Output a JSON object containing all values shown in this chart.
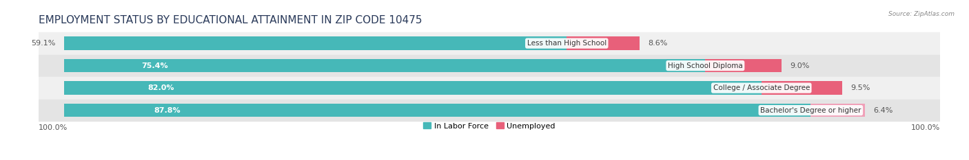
{
  "title": "EMPLOYMENT STATUS BY EDUCATIONAL ATTAINMENT IN ZIP CODE 10475",
  "source": "Source: ZipAtlas.com",
  "categories": [
    "Less than High School",
    "High School Diploma",
    "College / Associate Degree",
    "Bachelor's Degree or higher"
  ],
  "labor_force": [
    59.1,
    75.4,
    82.0,
    87.8
  ],
  "unemployed": [
    8.6,
    9.0,
    9.5,
    6.4
  ],
  "labor_force_color": "#46b8b8",
  "unemployed_colors": [
    "#e8607a",
    "#e8607a",
    "#e8607a",
    "#f0a0b8"
  ],
  "row_bg_color_odd": "#f0f0f0",
  "row_bg_color_even": "#e4e4e4",
  "fig_bg_color": "#ffffff",
  "xlim_left": 0,
  "xlim_right": 100,
  "x_left_label": "100.0%",
  "x_right_label": "100.0%",
  "legend_labor_force": "In Labor Force",
  "legend_unemployed": "Unemployed",
  "title_fontsize": 11,
  "label_fontsize": 8,
  "bar_height": 0.6,
  "figsize": [
    14.06,
    2.33
  ],
  "dpi": 100
}
